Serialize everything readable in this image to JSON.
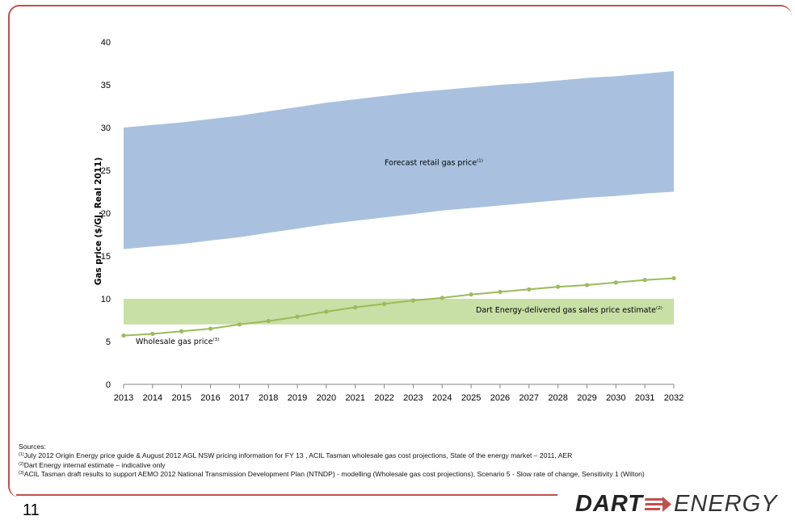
{
  "page_number": "11",
  "logo": {
    "text_bold": "DART",
    "text_light": "ENERGY",
    "accent_color": "#c0504d"
  },
  "sources": {
    "heading": "Sources:",
    "items": [
      {
        "marker": "(1)",
        "text": "July 2012 Origin Energy price guide & August 2012 AGL NSW pricing information for FY 13 , ACIL Tasman wholesale gas cost projections, State of the energy market – 2011, AER"
      },
      {
        "marker": "(2)",
        "text": "Dart Energy internal estimate – indicative only"
      },
      {
        "marker": "(3)",
        "text": "ACIL Tasman draft results to support AEMO 2012 National Transmission Development Plan (NTNDP) - modelling (Wholesale gas cost projections), Scenario 5 - Slow rate of change, Sensitivity 1 (Wilton)"
      }
    ]
  },
  "chart_data": {
    "type": "area",
    "ylabel": "Gas price ($/GJ, Real 2011)",
    "xlabel": "",
    "ylim": [
      0,
      40
    ],
    "yticks": [
      0,
      5,
      10,
      15,
      20,
      25,
      30,
      35,
      40
    ],
    "categories": [
      "2013",
      "2014",
      "2015",
      "2016",
      "2017",
      "2018",
      "2019",
      "2020",
      "2021",
      "2022",
      "2023",
      "2024",
      "2025",
      "2026",
      "2027",
      "2028",
      "2029",
      "2030",
      "2031",
      "2032"
    ],
    "grid": false,
    "colors": {
      "retail_band": "#a9c1de",
      "delivered_band": "#c8dfa6",
      "wholesale_line": "#9bbb59"
    },
    "series": [
      {
        "name": "Forecast retail gas price",
        "superscript": "(1)",
        "kind": "band",
        "low": [
          15.8,
          16.1,
          16.4,
          16.8,
          17.2,
          17.7,
          18.2,
          18.7,
          19.1,
          19.5,
          19.9,
          20.3,
          20.6,
          20.9,
          21.2,
          21.5,
          21.8,
          22.0,
          22.3,
          22.5
        ],
        "high": [
          30.0,
          30.3,
          30.6,
          31.0,
          31.4,
          31.9,
          32.4,
          32.9,
          33.3,
          33.7,
          34.1,
          34.4,
          34.7,
          35.0,
          35.2,
          35.5,
          35.8,
          36.0,
          36.3,
          36.6
        ]
      },
      {
        "name": "Dart Energy-delivered gas sales price estimate",
        "superscript": "(2)",
        "kind": "band",
        "low": [
          7.0,
          7.0,
          7.0,
          7.0,
          7.0,
          7.0,
          7.0,
          7.0,
          7.0,
          7.0,
          7.0,
          7.0,
          7.0,
          7.0,
          7.0,
          7.0,
          7.0,
          7.0,
          7.0,
          7.0
        ],
        "high": [
          10.0,
          10.0,
          10.0,
          10.0,
          10.0,
          10.0,
          10.0,
          10.0,
          10.0,
          10.0,
          10.0,
          10.0,
          10.0,
          10.0,
          10.0,
          10.0,
          10.0,
          10.0,
          10.0,
          10.0
        ]
      },
      {
        "name": "Wholesale gas price",
        "superscript": "(3)",
        "kind": "line",
        "values": [
          5.7,
          5.9,
          6.2,
          6.5,
          7.0,
          7.4,
          7.9,
          8.5,
          9.0,
          9.4,
          9.8,
          10.1,
          10.5,
          10.8,
          11.1,
          11.4,
          11.6,
          11.9,
          12.2,
          12.4
        ]
      }
    ]
  }
}
